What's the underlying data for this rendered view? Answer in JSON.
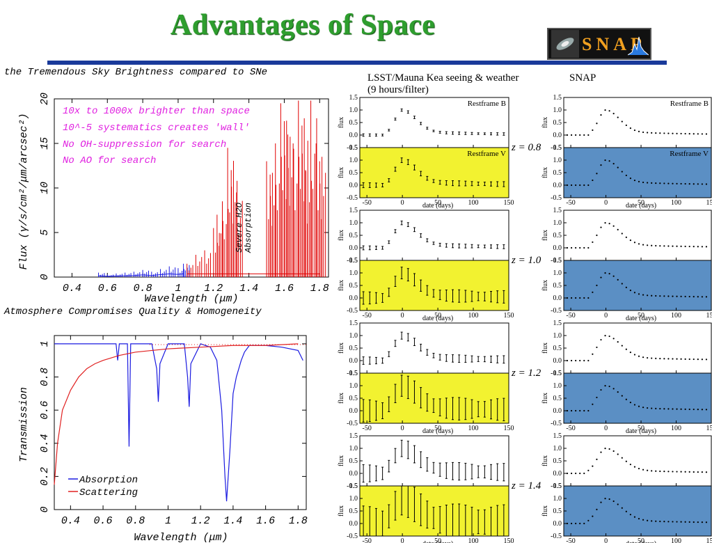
{
  "title": "Advantages of Space",
  "logo": {
    "text": "SNAP"
  },
  "left_top": {
    "caption": "the Tremendous Sky Brightness compared to SNe",
    "annotations": [
      "10x to 1000x brighter than space",
      "10^-5 systematics creates 'wall'",
      "No OH-suppression for search",
      "No AO for search"
    ],
    "h2o_label_1": "Severe H2O",
    "h2o_label_2": "Absorption"
  },
  "left_bottom": {
    "caption": "Atmosphere Compromises Quality & Homogeneity",
    "legend": [
      "Absorption",
      "Scattering"
    ]
  },
  "right": {
    "lsst_heading": "LSST/Mauna Kea seeing & weather",
    "lsst_sub": "(9 hours/filter)",
    "snap_heading": "SNAP",
    "ylabel": "flux",
    "xlabel": "date (days)",
    "restframe_b": "Restframe B",
    "restframe_v": "Restframe V",
    "redshifts": [
      "z = 0.8",
      "z = 1.0",
      "z = 1.2",
      "z = 1.4"
    ]
  },
  "colors": {
    "title": "#2e9e2e",
    "rule": "#1a3a9a",
    "annotation": "#e020e0",
    "sky_red": "#e00000",
    "sky_blue": "#1a1ae0",
    "yellow_panel": "#f2f230",
    "blue_panel": "#5b8fc4"
  },
  "chart_data": [
    {
      "type": "line",
      "name_ref": "sky-brightness",
      "title": "",
      "xlabel": "Wavelength (μm)",
      "ylabel": "Flux (γ/s/cm²/μm/arcsec²)",
      "xlim": [
        0.3,
        1.85
      ],
      "ylim": [
        0,
        20
      ],
      "xticks": [
        0.4,
        0.6,
        0.8,
        1,
        1.2,
        1.4,
        1.6,
        1.8
      ],
      "yticks": [
        0,
        5,
        10,
        15,
        20
      ],
      "series": [
        {
          "color": "#1a1ae0",
          "x": [
            0.55,
            0.6,
            0.65,
            0.7,
            0.75,
            0.8,
            0.85,
            0.9,
            0.95,
            1.0,
            1.03
          ],
          "y": [
            0.5,
            0.3,
            0.4,
            0.5,
            0.6,
            0.8,
            0.6,
            0.9,
            1.2,
            1.0,
            1.5
          ]
        },
        {
          "color": "#e00000",
          "x": [
            1.05,
            1.1,
            1.15,
            1.2,
            1.22,
            1.25,
            1.28,
            1.3,
            1.33,
            1.5,
            1.52,
            1.55,
            1.58,
            1.6,
            1.62,
            1.65,
            1.68,
            1.7,
            1.72,
            1.75,
            1.78,
            1.8
          ],
          "y": [
            1.5,
            2.5,
            3.0,
            5.5,
            7.0,
            8.5,
            14.5,
            12.0,
            9.5,
            13.0,
            11.5,
            15.0,
            19.5,
            17.5,
            16.0,
            15.0,
            19.8,
            17.0,
            12.0,
            19.8,
            15.0,
            13.0
          ]
        }
      ]
    },
    {
      "type": "line",
      "name_ref": "transmission",
      "title": "",
      "xlabel": "Wavelength (μm)",
      "ylabel": "Transmission",
      "xlim": [
        0.3,
        1.85
      ],
      "ylim": [
        0,
        1.05
      ],
      "xticks": [
        0.4,
        0.6,
        0.8,
        1,
        1.2,
        1.4,
        1.6,
        1.8
      ],
      "yticks": [
        0,
        0.2,
        0.4,
        0.6,
        0.8,
        1
      ],
      "legend": "bottom-left",
      "series": [
        {
          "name": "Absorption",
          "color": "#1a1ae0",
          "x": [
            0.3,
            0.68,
            0.69,
            0.7,
            0.75,
            0.76,
            0.77,
            0.8,
            0.9,
            0.93,
            0.94,
            0.95,
            1.0,
            1.1,
            1.12,
            1.13,
            1.14,
            1.2,
            1.26,
            1.3,
            1.33,
            1.35,
            1.36,
            1.37,
            1.38,
            1.4,
            1.42,
            1.45,
            1.47,
            1.5,
            1.6,
            1.7,
            1.8,
            1.83
          ],
          "y": [
            1.0,
            1.0,
            0.9,
            1.0,
            1.0,
            0.38,
            1.0,
            1.0,
            1.0,
            0.85,
            0.65,
            0.88,
            1.0,
            1.0,
            0.8,
            0.62,
            0.88,
            1.0,
            0.98,
            0.9,
            0.6,
            0.2,
            0.05,
            0.2,
            0.35,
            0.7,
            0.8,
            0.9,
            0.95,
            0.99,
            0.99,
            0.98,
            0.96,
            0.9
          ]
        },
        {
          "name": "Scattering",
          "color": "#e02020",
          "x": [
            0.3,
            0.32,
            0.35,
            0.4,
            0.45,
            0.5,
            0.55,
            0.6,
            0.7,
            0.8,
            0.9,
            1.0,
            1.2,
            1.4,
            1.6,
            1.8
          ],
          "y": [
            0.15,
            0.4,
            0.6,
            0.72,
            0.8,
            0.85,
            0.88,
            0.9,
            0.93,
            0.95,
            0.96,
            0.97,
            0.98,
            0.99,
            0.99,
            1.0
          ]
        }
      ]
    },
    {
      "type": "scatter",
      "name_ref": "light-curves",
      "xlabel": "date (days)",
      "ylabel": "flux",
      "xlim": [
        -60,
        150
      ],
      "ylim": [
        -0.5,
        1.5
      ],
      "xticks": [
        -50,
        0,
        50,
        100,
        150
      ],
      "yticks": [
        -0.5,
        0.0,
        0.5,
        1.0,
        1.5
      ],
      "redshifts": [
        0.8,
        1.0,
        1.2,
        1.4
      ],
      "lsst_errors_B": [
        0.05,
        0.08,
        0.15,
        0.35
      ],
      "lsst_errors_V": [
        0.1,
        0.25,
        0.45,
        0.7
      ],
      "snap_errors": [
        0.0,
        0.0,
        0.0,
        0.0
      ]
    }
  ]
}
